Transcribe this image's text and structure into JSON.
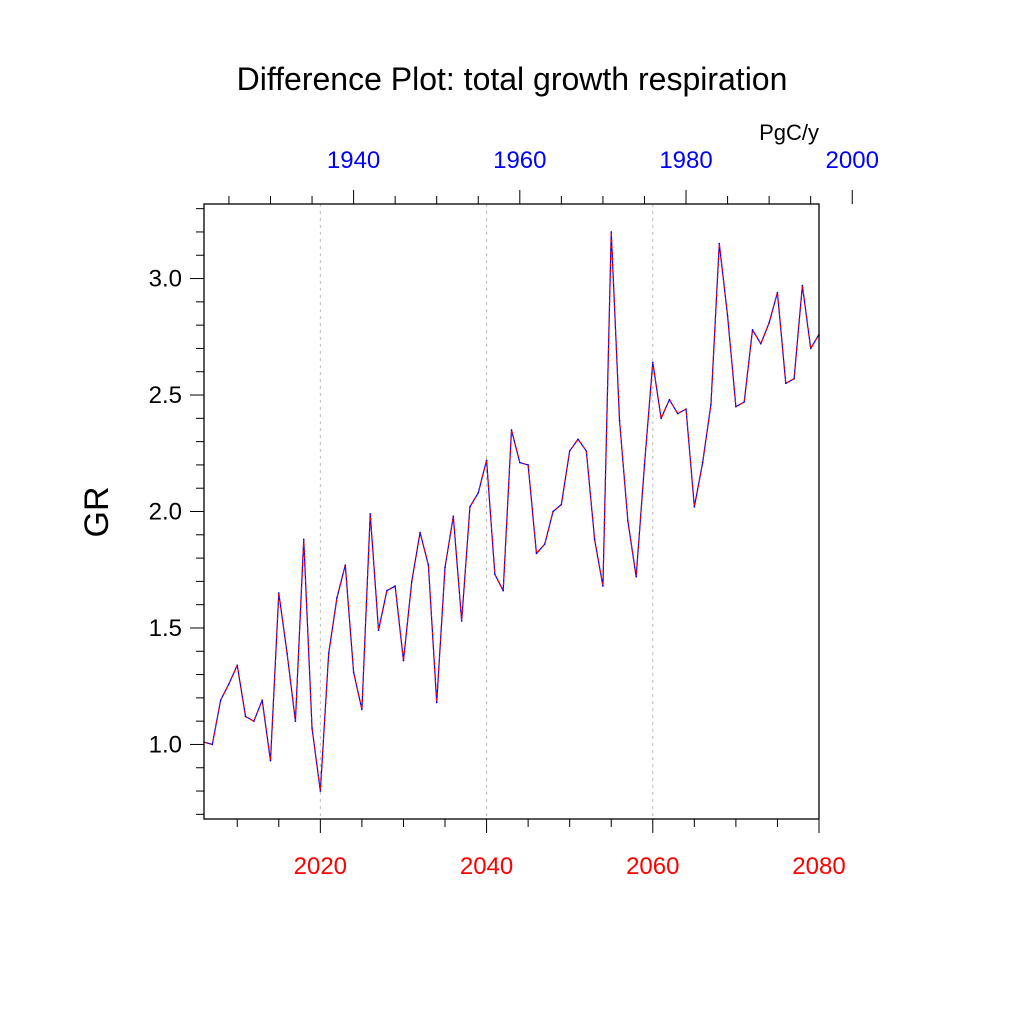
{
  "chart_data": {
    "type": "line",
    "title": "Difference Plot: total growth respiration",
    "units": "PgC/y",
    "ylabel": "GR",
    "xlabel": "",
    "xlim": [
      2006,
      2080
    ],
    "ylim": [
      0.68,
      3.32
    ],
    "bottom_axis": {
      "label_color": "#ff0000",
      "ticks": [
        2020,
        2040,
        2060,
        2080
      ],
      "tick_labels": [
        "2020",
        "2040",
        "2060",
        "2080"
      ],
      "minor_step": 5
    },
    "top_axis": {
      "label_color": "#0000ff",
      "offset_years": -84,
      "ticks": [
        1940,
        1960,
        1980,
        2000
      ],
      "tick_labels": [
        "1940",
        "1960",
        "1980",
        "2000"
      ],
      "minor_step": 5
    },
    "y_axis": {
      "ticks": [
        1.0,
        1.5,
        2.0,
        2.5,
        3.0
      ],
      "tick_labels": [
        "1.0",
        "1.5",
        "2.0",
        "2.5",
        "3.0"
      ],
      "minor_step": 0.1
    },
    "grid": "vertical-dashed-at-major-bottom-ticks",
    "series": [
      {
        "colors": [
          "#0000ff",
          "#ff0000"
        ],
        "x": [
          2006,
          2007,
          2008,
          2009,
          2010,
          2011,
          2012,
          2013,
          2014,
          2015,
          2016,
          2017,
          2018,
          2019,
          2020,
          2021,
          2022,
          2023,
          2024,
          2025,
          2026,
          2027,
          2028,
          2029,
          2030,
          2031,
          2032,
          2033,
          2034,
          2035,
          2036,
          2037,
          2038,
          2039,
          2040,
          2041,
          2042,
          2043,
          2044,
          2045,
          2046,
          2047,
          2048,
          2049,
          2050,
          2051,
          2052,
          2053,
          2054,
          2055,
          2056,
          2057,
          2058,
          2059,
          2060,
          2061,
          2062,
          2063,
          2064,
          2065,
          2066,
          2067,
          2068,
          2069,
          2070,
          2071,
          2072,
          2073,
          2074,
          2075,
          2076,
          2077,
          2078,
          2079,
          2080
        ],
        "y": [
          1.01,
          1.0,
          1.19,
          1.26,
          1.34,
          1.12,
          1.1,
          1.19,
          0.93,
          1.65,
          1.39,
          1.1,
          1.88,
          1.07,
          0.8,
          1.39,
          1.63,
          1.77,
          1.31,
          1.15,
          1.99,
          1.49,
          1.66,
          1.68,
          1.36,
          1.7,
          1.91,
          1.77,
          1.18,
          1.76,
          1.98,
          1.53,
          2.02,
          2.08,
          2.22,
          1.73,
          1.66,
          2.35,
          2.21,
          2.2,
          1.82,
          1.86,
          2.0,
          2.03,
          2.26,
          2.31,
          2.26,
          1.88,
          1.68,
          3.2,
          2.39,
          1.96,
          1.72,
          2.2,
          2.64,
          2.4,
          2.48,
          2.42,
          2.44,
          2.02,
          2.21,
          2.46,
          3.15,
          2.84,
          2.45,
          2.47,
          2.78,
          2.72,
          2.81,
          2.94,
          2.55,
          2.57,
          2.97,
          2.7,
          2.76
        ]
      }
    ]
  }
}
